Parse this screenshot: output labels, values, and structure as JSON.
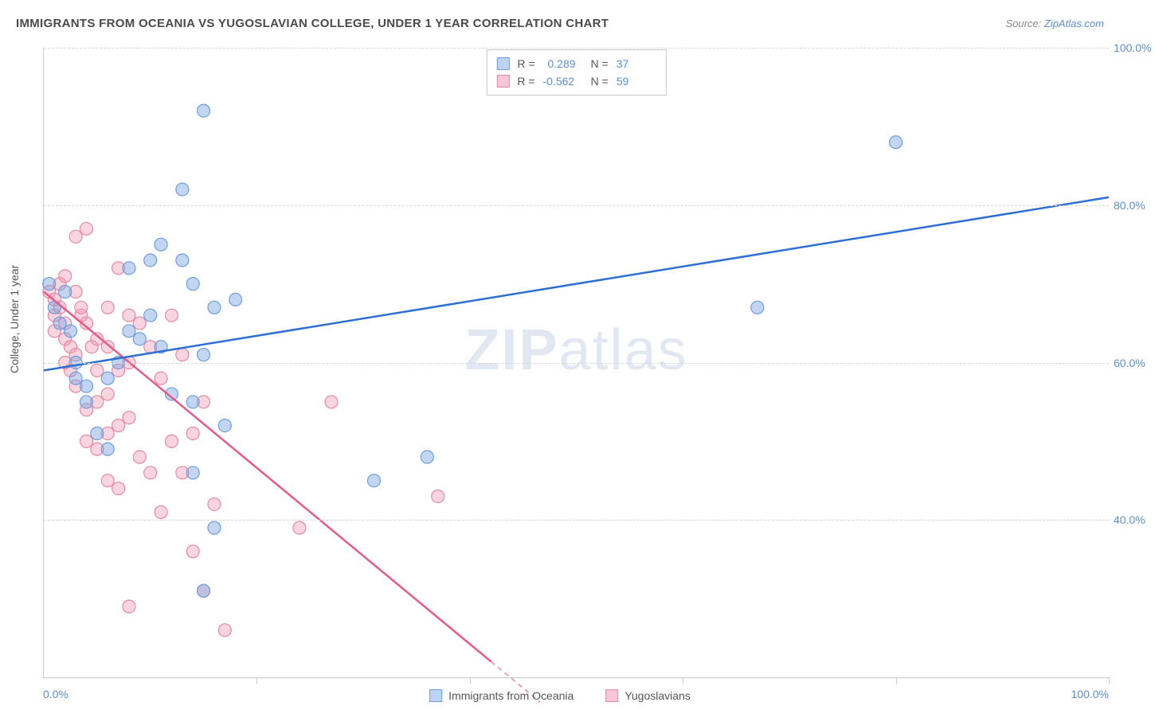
{
  "header": {
    "title": "IMMIGRANTS FROM OCEANIA VS YUGOSLAVIAN COLLEGE, UNDER 1 YEAR CORRELATION CHART",
    "source_prefix": "Source: ",
    "source_link": "ZipAtlas.com"
  },
  "watermark": {
    "bold": "ZIP",
    "rest": "atlas"
  },
  "axes": {
    "y_title": "College, Under 1 year",
    "xmin_label": "0.0%",
    "xmax_label": "100.0%",
    "xlim": [
      0,
      100
    ],
    "ylim": [
      20,
      100
    ],
    "y_ticks": [
      40,
      60,
      80,
      100
    ],
    "y_tick_labels": [
      "40.0%",
      "60.0%",
      "80.0%",
      "100.0%"
    ],
    "x_ticks": [
      0,
      20,
      40,
      60,
      80,
      100
    ]
  },
  "colors": {
    "series_a_fill": "rgba(120,165,225,0.45)",
    "series_a_stroke": "#6f9edc",
    "series_a_line": "#2e6fd4",
    "series_b_fill": "rgba(240,150,175,0.40)",
    "series_b_stroke": "#e58aa4",
    "series_b_line": "#e85a8a",
    "axis_text": "#5b8fd4",
    "grid": "#d8d8d8",
    "border": "#c8c8c8",
    "swatch_a_bg": "#bcd4f2",
    "swatch_a_border": "#6f9edc",
    "swatch_b_bg": "#f6c7d4",
    "swatch_b_border": "#e58aa4"
  },
  "marker_radius": 8,
  "legend_top": {
    "rows": [
      {
        "swatch": "a",
        "r_label": "R =",
        "r_value": "0.289",
        "n_label": "N =",
        "n_value": "37"
      },
      {
        "swatch": "b",
        "r_label": "R =",
        "r_value": "-0.562",
        "n_label": "N =",
        "n_value": "59"
      }
    ]
  },
  "legend_bottom": {
    "items": [
      {
        "swatch": "a",
        "label": "Immigrants from Oceania"
      },
      {
        "swatch": "b",
        "label": "Yugoslavians"
      }
    ]
  },
  "series_a": {
    "name": "Immigrants from Oceania",
    "trend": {
      "x1": 0,
      "y1": 59,
      "x2": 100,
      "y2": 81
    },
    "points": [
      [
        0.5,
        70
      ],
      [
        1,
        67
      ],
      [
        1.5,
        65
      ],
      [
        2,
        69
      ],
      [
        2.5,
        64
      ],
      [
        3,
        60
      ],
      [
        3,
        58
      ],
      [
        4,
        57
      ],
      [
        4,
        55
      ],
      [
        5,
        51
      ],
      [
        6,
        58
      ],
      [
        6,
        49
      ],
      [
        7,
        60
      ],
      [
        8,
        64
      ],
      [
        8,
        72
      ],
      [
        9,
        63
      ],
      [
        10,
        73
      ],
      [
        10,
        66
      ],
      [
        11,
        62
      ],
      [
        11,
        75
      ],
      [
        12,
        56
      ],
      [
        13,
        73
      ],
      [
        13,
        82
      ],
      [
        14,
        70
      ],
      [
        14,
        55
      ],
      [
        14,
        46
      ],
      [
        15,
        61
      ],
      [
        15,
        31
      ],
      [
        15,
        92
      ],
      [
        16,
        39
      ],
      [
        16,
        67
      ],
      [
        17,
        52
      ],
      [
        18,
        68
      ],
      [
        31,
        45
      ],
      [
        36,
        48
      ],
      [
        67,
        67
      ],
      [
        80,
        88
      ]
    ]
  },
  "series_b": {
    "name": "Yugoslavians",
    "trend": {
      "x1": 0,
      "y1": 69,
      "x2": 42,
      "y2": 22
    },
    "points": [
      [
        0.5,
        69
      ],
      [
        1,
        68
      ],
      [
        1,
        66
      ],
      [
        1,
        64
      ],
      [
        1.5,
        70
      ],
      [
        1.5,
        67
      ],
      [
        2,
        71
      ],
      [
        2,
        65
      ],
      [
        2,
        63
      ],
      [
        2,
        60
      ],
      [
        2.5,
        62
      ],
      [
        2.5,
        59
      ],
      [
        3,
        76
      ],
      [
        3,
        69
      ],
      [
        3,
        61
      ],
      [
        3,
        57
      ],
      [
        3.5,
        66
      ],
      [
        3.5,
        67
      ],
      [
        4,
        77
      ],
      [
        4,
        65
      ],
      [
        4,
        54
      ],
      [
        4,
        50
      ],
      [
        4.5,
        62
      ],
      [
        5,
        63
      ],
      [
        5,
        59
      ],
      [
        5,
        55
      ],
      [
        5,
        49
      ],
      [
        6,
        67
      ],
      [
        6,
        62
      ],
      [
        6,
        56
      ],
      [
        6,
        51
      ],
      [
        6,
        45
      ],
      [
        7,
        72
      ],
      [
        7,
        59
      ],
      [
        7,
        52
      ],
      [
        7,
        44
      ],
      [
        8,
        66
      ],
      [
        8,
        60
      ],
      [
        8,
        53
      ],
      [
        8,
        29
      ],
      [
        9,
        65
      ],
      [
        9,
        48
      ],
      [
        10,
        62
      ],
      [
        10,
        46
      ],
      [
        11,
        58
      ],
      [
        11,
        41
      ],
      [
        12,
        66
      ],
      [
        12,
        50
      ],
      [
        13,
        61
      ],
      [
        13,
        46
      ],
      [
        14,
        51
      ],
      [
        14,
        36
      ],
      [
        15,
        55
      ],
      [
        15,
        31
      ],
      [
        16,
        42
      ],
      [
        17,
        26
      ],
      [
        24,
        39
      ],
      [
        27,
        55
      ],
      [
        37,
        43
      ]
    ]
  }
}
